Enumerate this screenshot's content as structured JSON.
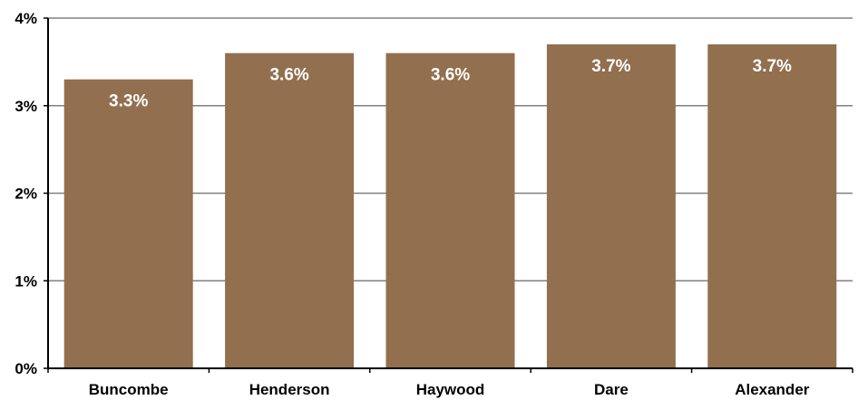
{
  "chart_data": {
    "type": "bar",
    "title": "",
    "xlabel": "",
    "ylabel": "",
    "categories": [
      "Buncombe",
      "Henderson",
      "Haywood",
      "Dare",
      "Alexander"
    ],
    "values": [
      3.3,
      3.6,
      3.6,
      3.7,
      3.7
    ],
    "data_labels": [
      "3.3%",
      "3.6%",
      "3.6%",
      "3.7%",
      "3.7%"
    ],
    "ylim": [
      0,
      4
    ],
    "y_ticks": [
      0,
      1,
      2,
      3,
      4
    ],
    "y_tick_labels": [
      "0%",
      "1%",
      "2%",
      "3%",
      "4%"
    ],
    "grid": true,
    "legend": "none",
    "bar_color": "#926f4f",
    "gridline_color": "#808080"
  }
}
